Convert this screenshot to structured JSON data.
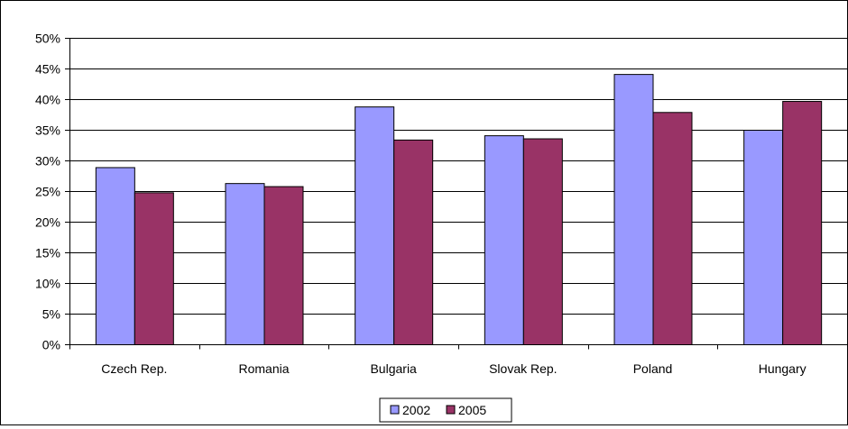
{
  "chart_data": {
    "type": "bar",
    "categories": [
      "Czech Rep.",
      "Romania",
      "Bulgaria",
      "Slovak Rep.",
      "Poland",
      "Hungary"
    ],
    "series": [
      {
        "name": "2002",
        "color": "#9999ff",
        "values": [
          28.9,
          26.3,
          38.8,
          34.1,
          44.1,
          35.0
        ]
      },
      {
        "name": "2005",
        "color": "#993366",
        "values": [
          24.8,
          25.8,
          33.4,
          33.6,
          37.9,
          39.7
        ]
      }
    ],
    "ylim": [
      0,
      50
    ],
    "yticks": [
      0,
      5,
      10,
      15,
      20,
      25,
      30,
      35,
      40,
      45,
      50
    ],
    "ytick_labels": [
      "0%",
      "5%",
      "10%",
      "15%",
      "20%",
      "25%",
      "30%",
      "35%",
      "40%",
      "45%",
      "50%"
    ],
    "title": "",
    "xlabel": "",
    "ylabel": "",
    "grid": true,
    "legend_position": "bottom"
  }
}
